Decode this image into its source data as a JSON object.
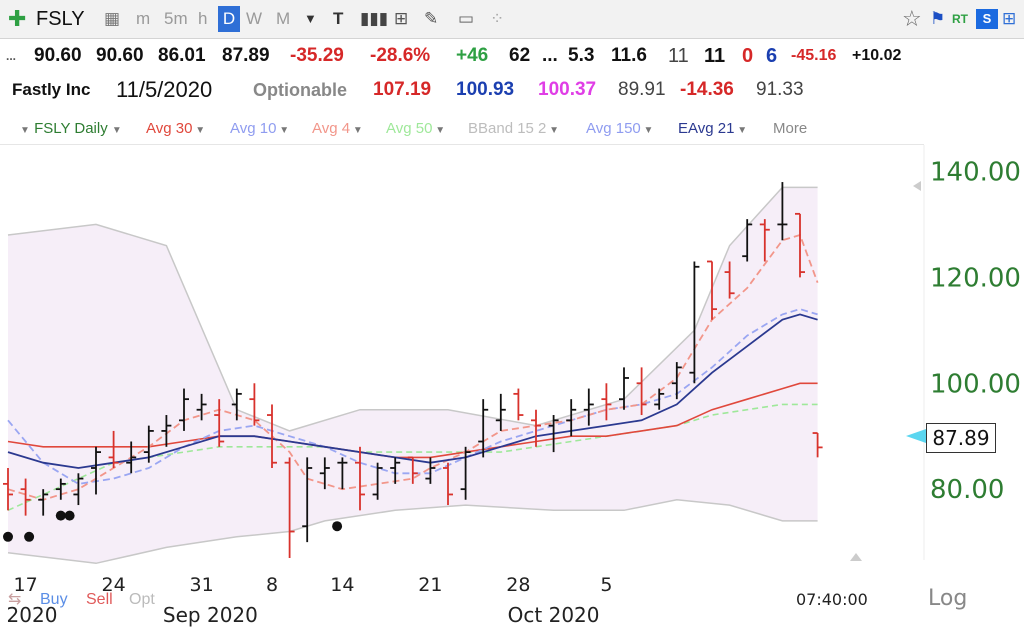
{
  "toolbar": {
    "symbol": "FSLY",
    "intervals": [
      "m",
      "5m",
      "h",
      "D",
      "W",
      "M"
    ],
    "active_interval": "D",
    "colors": {
      "active_bg": "#2f6fd6",
      "active_text": "#ffffff"
    }
  },
  "quote": {
    "open": "90.60",
    "high": "90.60",
    "low": "86.01",
    "close": "87.89",
    "change": "-35.29",
    "change_pct": "-28.6%",
    "rank": "+46",
    "n1": "62",
    "dots": "...",
    "n2": "5.3",
    "n3": "11.6",
    "n4": "11",
    "n5": "11",
    "n6": "0",
    "n7": "6",
    "n8": "-45.16",
    "n9": "+10.02",
    "lead_dots": "..."
  },
  "info": {
    "company": "Fastly Inc",
    "date": "11/5/2020",
    "optionable": "Optionable",
    "v1": "107.19",
    "v2": "100.93",
    "v3": "100.37",
    "v4": "89.91",
    "v5": "-14.36",
    "v6": "91.33"
  },
  "legend": {
    "symbol_label": "FSLY Daily",
    "items": [
      {
        "label": "Avg 30",
        "color": "#e0483c"
      },
      {
        "label": "Avg 10",
        "color": "#8f9cf0"
      },
      {
        "label": "Avg 4",
        "color": "#f2968a"
      },
      {
        "label": "Avg 50",
        "color": "#9fe89a"
      },
      {
        "label": "BBand 15 2",
        "color": "#bdbdbd"
      },
      {
        "label": "Avg 150",
        "color": "#8f9cf0"
      },
      {
        "label": "EAvg 21",
        "color": "#2b3990"
      }
    ],
    "more": "More"
  },
  "price_badge": "87.89",
  "bottom": {
    "buy": "Buy",
    "sell": "Sell",
    "opt": "Opt",
    "time": "07:40:00",
    "log": "Log"
  },
  "chart_data": {
    "type": "ohlc",
    "ylim": [
      67,
      145
    ],
    "y_ticks": [
      "140.00",
      "120.00",
      "100.00",
      "80.00"
    ],
    "y_tick_values": [
      140,
      120,
      100,
      80
    ],
    "x_ticks": [
      {
        "label": "17",
        "i": 1
      },
      {
        "label": "24",
        "i": 6
      },
      {
        "label": "31",
        "i": 11
      },
      {
        "label": "8",
        "i": 15
      },
      {
        "label": "14",
        "i": 19
      },
      {
        "label": "21",
        "i": 24
      },
      {
        "label": "28",
        "i": 29
      },
      {
        "label": "5",
        "i": 34
      }
    ],
    "x_months": [
      {
        "label": "2020",
        "i": 0
      },
      {
        "label": "Sep 2020",
        "i": 11.5
      },
      {
        "label": "Oct 2020",
        "i": 31
      }
    ],
    "candles": [
      [
        81,
        84,
        76,
        79
      ],
      [
        80,
        82,
        75,
        78
      ],
      [
        78,
        80,
        75,
        79
      ],
      [
        80,
        82,
        78,
        81
      ],
      [
        79,
        83,
        77,
        82
      ],
      [
        84,
        88,
        79,
        87
      ],
      [
        86,
        91,
        84,
        85
      ],
      [
        85,
        89,
        83,
        86
      ],
      [
        87,
        92,
        85,
        91
      ],
      [
        91,
        94,
        88,
        92
      ],
      [
        93,
        99,
        91,
        97
      ],
      [
        95,
        98,
        93,
        96
      ],
      [
        94,
        97,
        88,
        89
      ],
      [
        96,
        99,
        93,
        98
      ],
      [
        97,
        100,
        92,
        93
      ],
      [
        94,
        96,
        84,
        85
      ],
      [
        85,
        86,
        67,
        72
      ],
      [
        73,
        86,
        70,
        84
      ],
      [
        83,
        86,
        80,
        84
      ],
      [
        85,
        86,
        80,
        85
      ],
      [
        85,
        88,
        76,
        79
      ],
      [
        79,
        85,
        78,
        84
      ],
      [
        84,
        86,
        81,
        85
      ],
      [
        86,
        86,
        81,
        83
      ],
      [
        82,
        86,
        81,
        84
      ],
      [
        84,
        85,
        77,
        79
      ],
      [
        80,
        88,
        78,
        87
      ],
      [
        89,
        97,
        86,
        95
      ],
      [
        93,
        98,
        91,
        95
      ],
      [
        98,
        99,
        93,
        94
      ],
      [
        93,
        95,
        88,
        92
      ],
      [
        92,
        94,
        87,
        93
      ],
      [
        93,
        97,
        90,
        95
      ],
      [
        95,
        99,
        92,
        96
      ],
      [
        97,
        100,
        93,
        96
      ],
      [
        97,
        103,
        95,
        101
      ],
      [
        100,
        103,
        94,
        96
      ],
      [
        96,
        99,
        95,
        98
      ],
      [
        100,
        104,
        97,
        103
      ],
      [
        102,
        123,
        100,
        122
      ],
      [
        123,
        123,
        112,
        114
      ],
      [
        121,
        123,
        116,
        117
      ],
      [
        124,
        131,
        123,
        130
      ],
      [
        130,
        131,
        123,
        129
      ],
      [
        130,
        138,
        127,
        130
      ],
      [
        132,
        132,
        120,
        121
      ],
      [
        90.6,
        90.6,
        86.01,
        87.89
      ]
    ],
    "overlays": {
      "bband_upper": [
        [
          0,
          128
        ],
        [
          5,
          130
        ],
        [
          9,
          126
        ],
        [
          13,
          95
        ],
        [
          16,
          91
        ],
        [
          20,
          95
        ],
        [
          25,
          95
        ],
        [
          30,
          92
        ],
        [
          35,
          97
        ],
        [
          39,
          110
        ],
        [
          41,
          126
        ],
        [
          44,
          137
        ],
        [
          46,
          137
        ]
      ],
      "bband_lower": [
        [
          0,
          68
        ],
        [
          5,
          66
        ],
        [
          9,
          69
        ],
        [
          13,
          71
        ],
        [
          16,
          72
        ],
        [
          18,
          74
        ],
        [
          22,
          76
        ],
        [
          26,
          77
        ],
        [
          31,
          76
        ],
        [
          35,
          76
        ],
        [
          38,
          78
        ],
        [
          41,
          77
        ],
        [
          44,
          74
        ],
        [
          46,
          74
        ]
      ],
      "avg4": [
        [
          0,
          80
        ],
        [
          2,
          78
        ],
        [
          4,
          80
        ],
        [
          6,
          84
        ],
        [
          8,
          88
        ],
        [
          10,
          93
        ],
        [
          12,
          95
        ],
        [
          14,
          93
        ],
        [
          16,
          87
        ],
        [
          17,
          82
        ],
        [
          19,
          80
        ],
        [
          21,
          81
        ],
        [
          23,
          82
        ],
        [
          24,
          84
        ],
        [
          26,
          87
        ],
        [
          28,
          91
        ],
        [
          30,
          92
        ],
        [
          32,
          93
        ],
        [
          34,
          95
        ],
        [
          36,
          96
        ],
        [
          38,
          101
        ],
        [
          40,
          112
        ],
        [
          42,
          118
        ],
        [
          44,
          127
        ],
        [
          45,
          128
        ],
        [
          46,
          119
        ]
      ],
      "avg10": [
        [
          0,
          93
        ],
        [
          2,
          85
        ],
        [
          4,
          81
        ],
        [
          6,
          82
        ],
        [
          8,
          84
        ],
        [
          10,
          88
        ],
        [
          12,
          91
        ],
        [
          14,
          92
        ],
        [
          16,
          90
        ],
        [
          18,
          88
        ],
        [
          20,
          85
        ],
        [
          22,
          83
        ],
        [
          24,
          83
        ],
        [
          26,
          86
        ],
        [
          28,
          89
        ],
        [
          30,
          91
        ],
        [
          32,
          93
        ],
        [
          34,
          95
        ],
        [
          36,
          96
        ],
        [
          38,
          98
        ],
        [
          40,
          103
        ],
        [
          42,
          109
        ],
        [
          44,
          113
        ],
        [
          45,
          114
        ],
        [
          46,
          113
        ]
      ],
      "avg30": [
        [
          0,
          89
        ],
        [
          2,
          88
        ],
        [
          4,
          88
        ],
        [
          6,
          88
        ],
        [
          8,
          88
        ],
        [
          10,
          89
        ],
        [
          12,
          90
        ],
        [
          14,
          90
        ],
        [
          16,
          89
        ],
        [
          18,
          88
        ],
        [
          20,
          87
        ],
        [
          22,
          86
        ],
        [
          24,
          86
        ],
        [
          26,
          87
        ],
        [
          28,
          88
        ],
        [
          30,
          89
        ],
        [
          32,
          90
        ],
        [
          34,
          90
        ],
        [
          36,
          91
        ],
        [
          38,
          92
        ],
        [
          40,
          95
        ],
        [
          42,
          97
        ],
        [
          44,
          99
        ],
        [
          45,
          100
        ],
        [
          46,
          100
        ]
      ],
      "avg50": [
        [
          0,
          76
        ],
        [
          2,
          79
        ],
        [
          4,
          82
        ],
        [
          6,
          85
        ],
        [
          8,
          86
        ],
        [
          10,
          87
        ],
        [
          12,
          88
        ],
        [
          14,
          88
        ],
        [
          16,
          88
        ],
        [
          18,
          88
        ],
        [
          20,
          87
        ],
        [
          22,
          87
        ],
        [
          24,
          87
        ],
        [
          26,
          87
        ],
        [
          28,
          87
        ],
        [
          30,
          88
        ],
        [
          32,
          89
        ],
        [
          34,
          90
        ],
        [
          36,
          91
        ],
        [
          38,
          92
        ],
        [
          40,
          94
        ],
        [
          42,
          95
        ],
        [
          44,
          96
        ],
        [
          45,
          96
        ],
        [
          46,
          96
        ]
      ],
      "eavg21": [
        [
          0,
          87
        ],
        [
          2,
          85
        ],
        [
          4,
          84
        ],
        [
          6,
          85
        ],
        [
          8,
          86
        ],
        [
          10,
          88
        ],
        [
          12,
          90
        ],
        [
          14,
          90
        ],
        [
          16,
          89
        ],
        [
          18,
          88
        ],
        [
          20,
          87
        ],
        [
          22,
          86
        ],
        [
          24,
          85
        ],
        [
          26,
          86
        ],
        [
          28,
          88
        ],
        [
          30,
          90
        ],
        [
          32,
          91
        ],
        [
          34,
          92
        ],
        [
          36,
          93
        ],
        [
          38,
          96
        ],
        [
          40,
          102
        ],
        [
          42,
          107
        ],
        [
          44,
          112
        ],
        [
          45,
          113
        ],
        [
          46,
          112
        ]
      ]
    },
    "markers": [
      {
        "i": 0,
        "y": 71
      },
      {
        "i": 1.2,
        "y": 71
      },
      {
        "i": 3,
        "y": 75
      },
      {
        "i": 3.5,
        "y": 75
      },
      {
        "i": 18.7,
        "y": 73
      }
    ]
  }
}
